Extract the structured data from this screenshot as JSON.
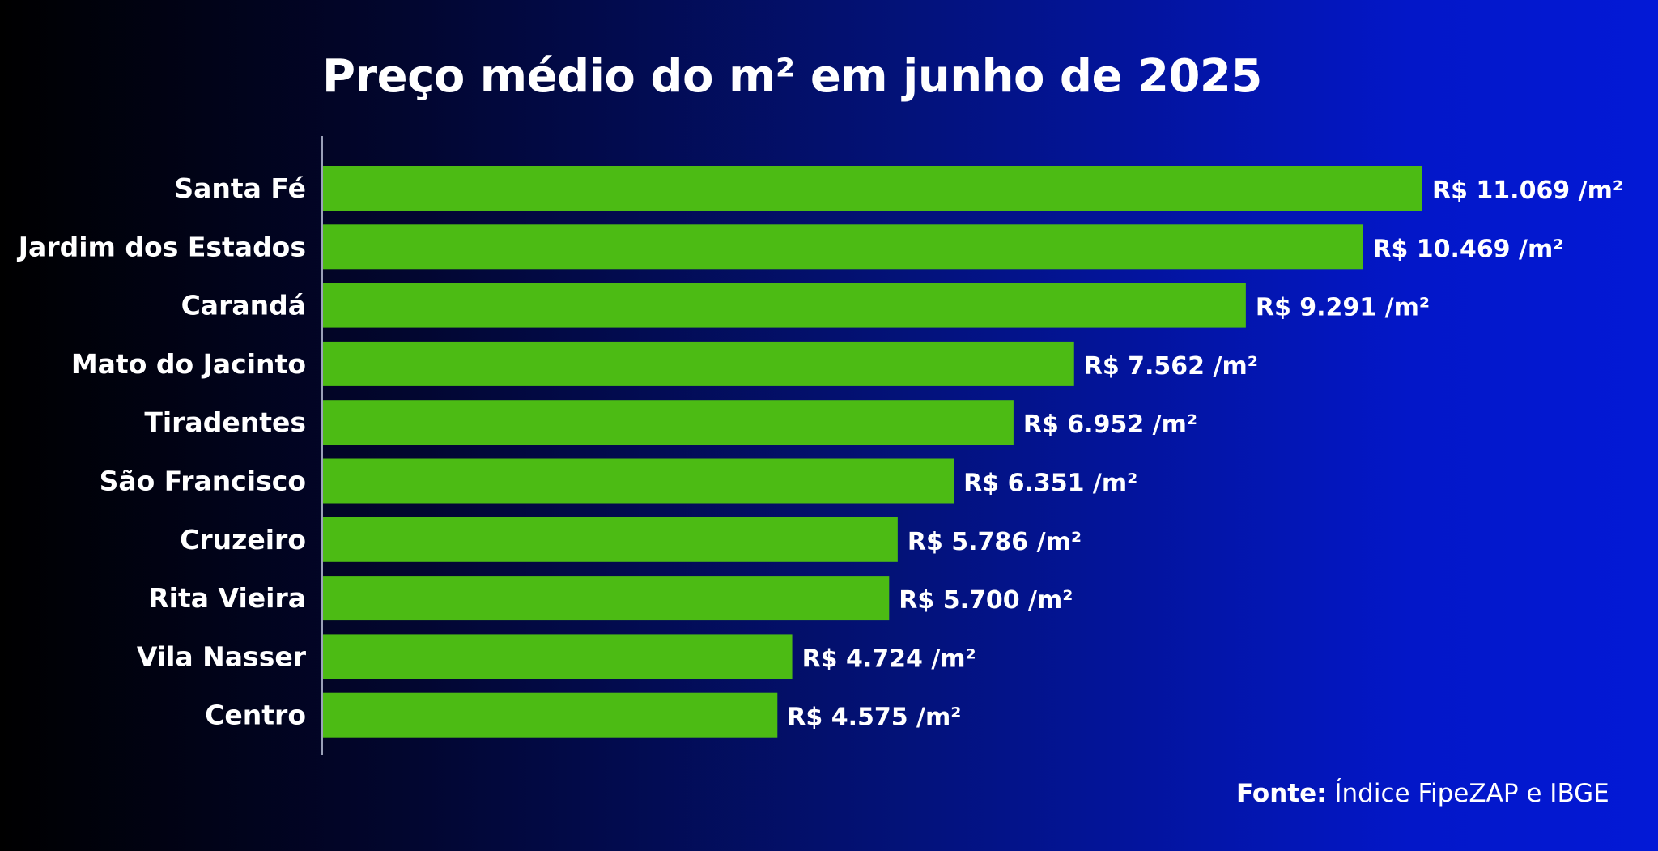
{
  "chart_data": {
    "type": "bar",
    "orientation": "horizontal",
    "title": "Preço médio do m² em junho de 2025",
    "categories": [
      "Santa Fé",
      "Jardim dos Estados",
      "Carandá",
      "Mato do Jacinto",
      "Tiradentes",
      "São Francisco",
      "Cruzeiro",
      "Rita Vieira",
      "Vila Nasser",
      "Centro"
    ],
    "values": [
      11069,
      10469,
      9291,
      7562,
      6952,
      6351,
      5786,
      5700,
      4724,
      4575
    ],
    "value_labels": [
      "R$ 11.069 /m²",
      "R$ 10.469 /m²",
      "R$ 9.291 /m²",
      "R$ 7.562 /m²",
      "R$ 6.952 /m²",
      "R$ 6.351 /m²",
      "R$ 5.786 /m²",
      "R$ 5.700 /m²",
      "R$ 4.724 /m²",
      "R$ 4.575 /m²"
    ],
    "xlim": [
      0,
      11069
    ],
    "bar_color": "#4cbb14",
    "grid": false
  },
  "source": {
    "label": "Fonte:",
    "text": "Índice FipeZAP e IBGE"
  },
  "colors": {
    "background_left": "#000000",
    "background_right": "#0319d6",
    "text": "#ffffff"
  }
}
